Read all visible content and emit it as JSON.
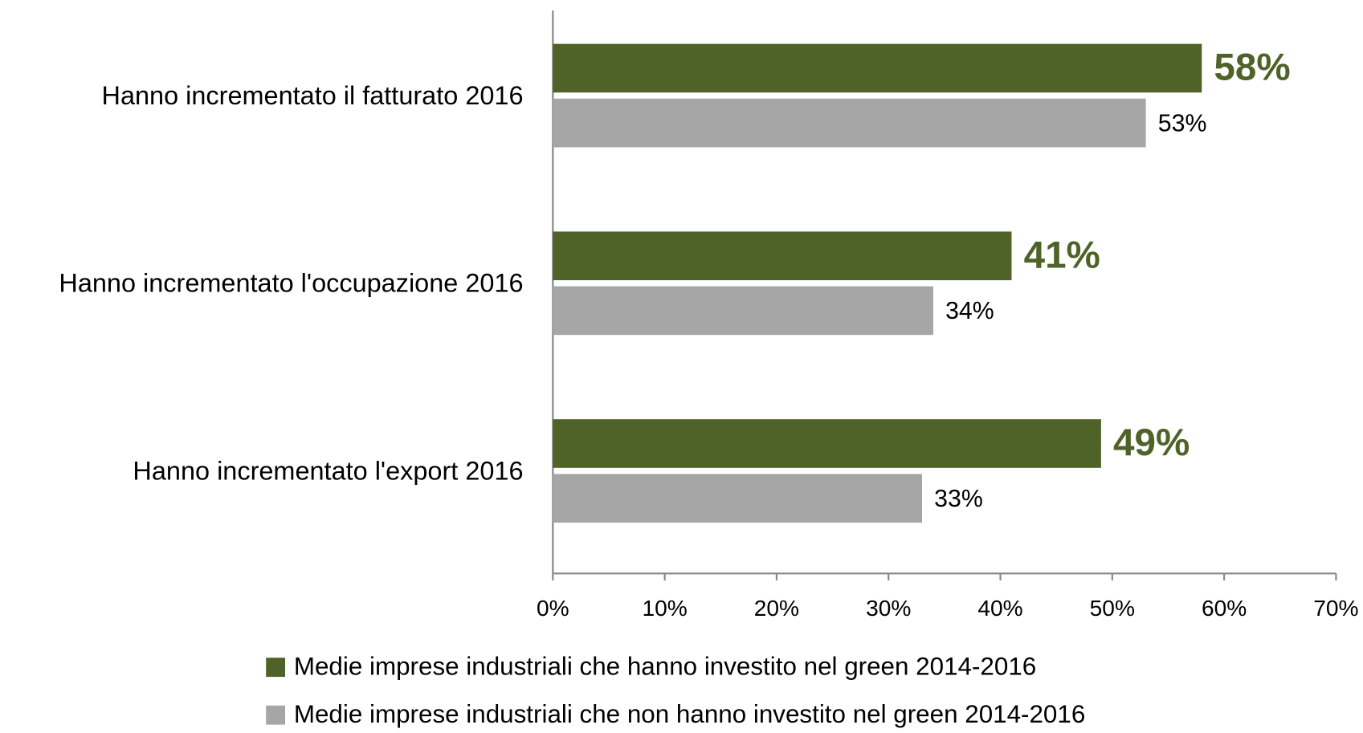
{
  "chart_data": {
    "type": "hbar",
    "categories": [
      "Hanno incrementato il fatturato 2016",
      "Hanno incrementato l'occupazione 2016",
      "Hanno incrementato l'export 2016"
    ],
    "series": [
      {
        "name": "Medie imprese industriali che hanno investito nel green 2014-2016",
        "color": "#4f6228",
        "values": [
          58,
          41,
          49
        ],
        "value_labels": [
          "58%",
          "41%",
          "49%"
        ]
      },
      {
        "name": "Medie imprese industriali che non hanno investito nel green 2014-2016",
        "color": "#a6a6a6",
        "values": [
          53,
          34,
          33
        ],
        "value_labels": [
          "53%",
          "34%",
          "33%"
        ]
      }
    ],
    "xlim": [
      0,
      70
    ],
    "xticks": [
      {
        "value": 0,
        "label": "0%"
      },
      {
        "value": 10,
        "label": "10%"
      },
      {
        "value": 20,
        "label": "20%"
      },
      {
        "value": 30,
        "label": "30%"
      },
      {
        "value": 40,
        "label": "40%"
      },
      {
        "value": 50,
        "label": "50%"
      },
      {
        "value": 60,
        "label": "60%"
      },
      {
        "value": 70,
        "label": "70%"
      }
    ],
    "grid": false,
    "legend": "bottom"
  }
}
